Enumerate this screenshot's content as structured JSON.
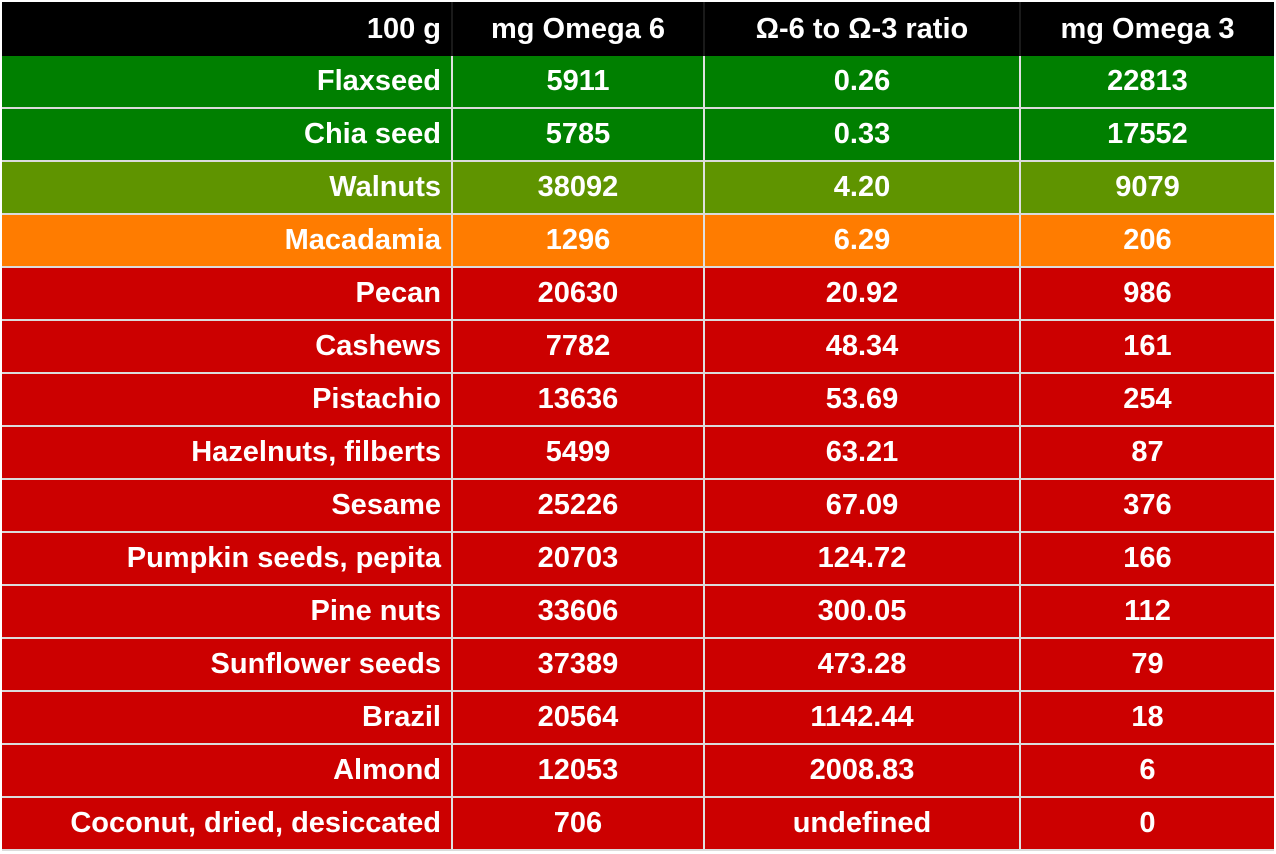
{
  "header": {
    "food": "100 g",
    "omega6": "mg Omega 6",
    "ratio": "Ω-6 to Ω-3 ratio",
    "omega3": "mg Omega 3"
  },
  "colors": {
    "green": "#007f00",
    "olive": "#5f9400",
    "orange": "#ff7c00",
    "red": "#cc0000",
    "header": "#000000"
  },
  "rows": [
    {
      "food": "Flaxseed",
      "omega6": "5911",
      "ratio": "0.26",
      "omega3": "22813",
      "tier": "green"
    },
    {
      "food": "Chia seed",
      "omega6": "5785",
      "ratio": "0.33",
      "omega3": "17552",
      "tier": "green"
    },
    {
      "food": "Walnuts",
      "omega6": "38092",
      "ratio": "4.20",
      "omega3": "9079",
      "tier": "olive"
    },
    {
      "food": "Macadamia",
      "omega6": "1296",
      "ratio": "6.29",
      "omega3": "206",
      "tier": "orange"
    },
    {
      "food": "Pecan",
      "omega6": "20630",
      "ratio": "20.92",
      "omega3": "986",
      "tier": "red"
    },
    {
      "food": "Cashews",
      "omega6": "7782",
      "ratio": "48.34",
      "omega3": "161",
      "tier": "red"
    },
    {
      "food": "Pistachio",
      "omega6": "13636",
      "ratio": "53.69",
      "omega3": "254",
      "tier": "red"
    },
    {
      "food": "Hazelnuts, filberts",
      "omega6": "5499",
      "ratio": "63.21",
      "omega3": "87",
      "tier": "red"
    },
    {
      "food": "Sesame",
      "omega6": "25226",
      "ratio": "67.09",
      "omega3": "376",
      "tier": "red"
    },
    {
      "food": "Pumpkin seeds, pepita",
      "omega6": "20703",
      "ratio": "124.72",
      "omega3": "166",
      "tier": "red"
    },
    {
      "food": "Pine nuts",
      "omega6": "33606",
      "ratio": "300.05",
      "omega3": "112",
      "tier": "red"
    },
    {
      "food": "Sunflower seeds",
      "omega6": "37389",
      "ratio": "473.28",
      "omega3": "79",
      "tier": "red"
    },
    {
      "food": "Brazil",
      "omega6": "20564",
      "ratio": "1142.44",
      "omega3": "18",
      "tier": "red"
    },
    {
      "food": "Almond",
      "omega6": "12053",
      "ratio": "2008.83",
      "omega3": "6",
      "tier": "red"
    },
    {
      "food": "Coconut, dried, desiccated",
      "omega6": "706",
      "ratio": "undefined",
      "omega3": "0",
      "tier": "red"
    }
  ]
}
